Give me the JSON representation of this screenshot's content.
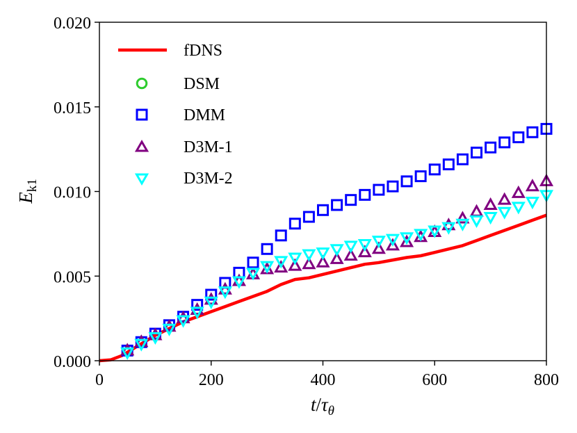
{
  "chart_data": {
    "type": "line",
    "title": "",
    "xlabel": {
      "main": "t",
      "slash": "/",
      "tau": "τ",
      "sub": "θ"
    },
    "ylabel": {
      "main": "E",
      "sub": "k1"
    },
    "xlim": [
      0,
      800
    ],
    "ylim": [
      0,
      0.02
    ],
    "xticks": [
      0,
      200,
      400,
      600,
      800
    ],
    "xtick_labels": [
      "0",
      "200",
      "400",
      "600",
      "800"
    ],
    "yticks": [
      0,
      0.005,
      0.01,
      0.015,
      0.02
    ],
    "ytick_labels": [
      "0.000",
      "0.005",
      "0.010",
      "0.015",
      "0.020"
    ],
    "legend_position": "upper-left",
    "marker_x": [
      50,
      75,
      100,
      125,
      150,
      175,
      200,
      225,
      250,
      275,
      300,
      325,
      350,
      375,
      400,
      425,
      450,
      475,
      500,
      525,
      550,
      575,
      600,
      625,
      650,
      675,
      700,
      725,
      750,
      775,
      800
    ],
    "series": [
      {
        "name": "fDNS",
        "kind": "line",
        "color": "#ff0000",
        "x": [
          0,
          20,
          40,
          60,
          80,
          100,
          125,
          150,
          175,
          200,
          225,
          250,
          275,
          300,
          325,
          350,
          375,
          400,
          425,
          450,
          475,
          500,
          525,
          550,
          575,
          600,
          625,
          650,
          675,
          700,
          725,
          750,
          775,
          800
        ],
        "y": [
          0,
          5e-05,
          0.0003,
          0.0007,
          0.0011,
          0.0015,
          0.0019,
          0.0023,
          0.0026,
          0.0029,
          0.0032,
          0.0035,
          0.0038,
          0.0041,
          0.0045,
          0.0048,
          0.0049,
          0.0051,
          0.0053,
          0.0055,
          0.0057,
          0.0058,
          0.00595,
          0.0061,
          0.0062,
          0.0064,
          0.0066,
          0.0068,
          0.0071,
          0.0074,
          0.0077,
          0.008,
          0.0083,
          0.0086
        ]
      },
      {
        "name": "DSM",
        "kind": "marker",
        "marker": "circle",
        "color": "#2ecc2e",
        "y": []
      },
      {
        "name": "DMM",
        "kind": "marker",
        "marker": "square",
        "color": "#0000ff",
        "y": [
          0.0006,
          0.0011,
          0.0016,
          0.0021,
          0.0026,
          0.0033,
          0.0039,
          0.0046,
          0.0052,
          0.0058,
          0.0066,
          0.0074,
          0.0081,
          0.0085,
          0.0089,
          0.0092,
          0.0095,
          0.0098,
          0.0101,
          0.0103,
          0.0106,
          0.0109,
          0.0113,
          0.0116,
          0.0119,
          0.0123,
          0.0126,
          0.0129,
          0.0132,
          0.0135,
          0.0137
        ]
      },
      {
        "name": "D3M-1",
        "kind": "marker",
        "marker": "triangle-up",
        "color": "#800080",
        "y": [
          0.0006,
          0.0011,
          0.0015,
          0.002,
          0.0025,
          0.003,
          0.0036,
          0.0042,
          0.0047,
          0.0051,
          0.0054,
          0.0055,
          0.0056,
          0.0057,
          0.0058,
          0.006,
          0.0062,
          0.0064,
          0.0066,
          0.0068,
          0.007,
          0.0073,
          0.0076,
          0.008,
          0.0084,
          0.0088,
          0.0092,
          0.0095,
          0.0099,
          0.0103,
          0.0106
        ]
      },
      {
        "name": "D3M-2",
        "kind": "marker",
        "marker": "triangle-down",
        "color": "#00ffff",
        "y": [
          0.0005,
          0.001,
          0.0014,
          0.0019,
          0.0024,
          0.0029,
          0.0035,
          0.0041,
          0.0047,
          0.0052,
          0.0056,
          0.0059,
          0.0061,
          0.0063,
          0.0064,
          0.0066,
          0.0068,
          0.0069,
          0.0071,
          0.0072,
          0.0073,
          0.0075,
          0.0077,
          0.0079,
          0.0081,
          0.0083,
          0.0085,
          0.0088,
          0.0091,
          0.0094,
          0.0098
        ]
      }
    ]
  }
}
